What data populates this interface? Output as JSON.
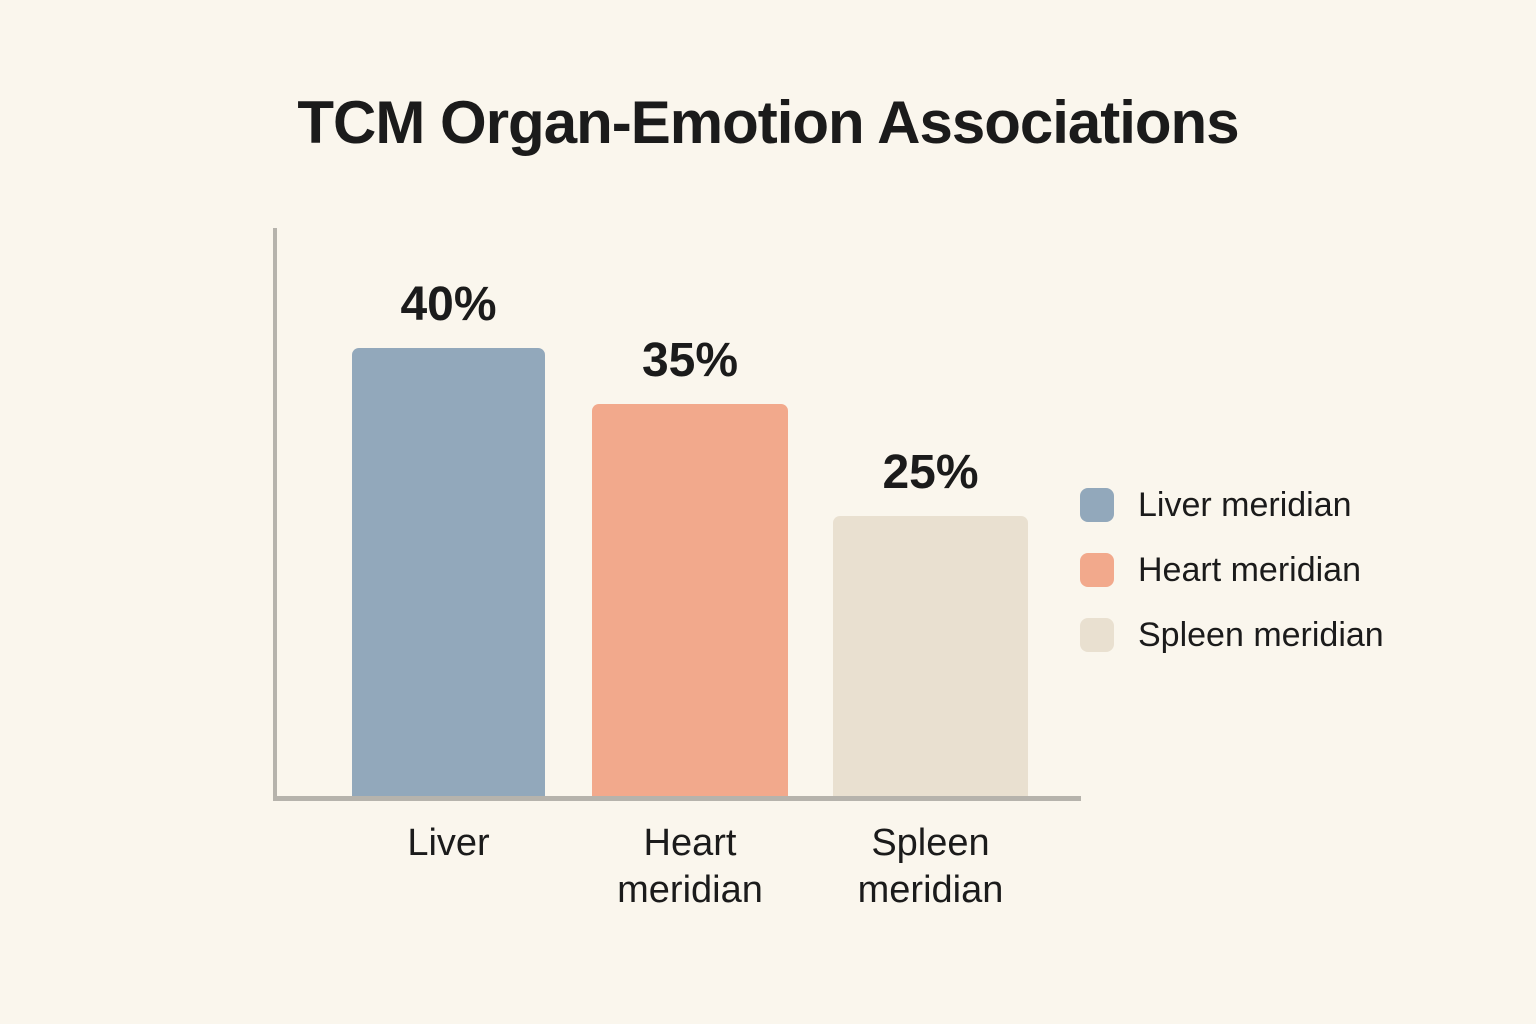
{
  "title": "TCM Organ-Emotion Associations",
  "chart_data": {
    "type": "bar",
    "title": "TCM Organ-Emotion Associations",
    "categories": [
      "Liver",
      "Heart meridian",
      "Spleen meridian"
    ],
    "values": [
      40,
      35,
      25
    ],
    "value_labels": [
      "40%",
      "35%",
      "25%"
    ],
    "x_tick_labels": [
      "Liver",
      "Heart\nmeridian",
      "Spleen\nmeridian"
    ],
    "xlabel": "",
    "ylabel": "",
    "ylim": [
      0,
      50
    ],
    "grid": false,
    "bar_colors": [
      "#92a8bb",
      "#f2a98c",
      "#e9e0d0"
    ],
    "legend_position": "right",
    "legend": [
      {
        "label": "Liver meridian",
        "color": "#92a8bb"
      },
      {
        "label": "Heart meridian",
        "color": "#f2a98c"
      },
      {
        "label": "Spleen meridian",
        "color": "#e9e0d0"
      }
    ]
  },
  "colors": {
    "background": "#faf6ed",
    "axis": "#b6b3ac",
    "text": "#1b1b1b"
  }
}
